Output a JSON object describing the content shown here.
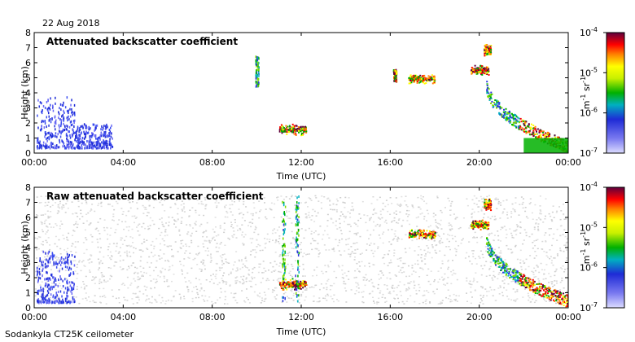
{
  "date": "22 Aug 2018",
  "footer": "Sodankyla CT25K ceilometer",
  "chart_data": [
    {
      "type": "heatmap",
      "title": "Attenuated backscatter coefficient",
      "xlabel": "Time (UTC)",
      "ylabel": "Height (km)",
      "xticks": [
        "00:00",
        "04:00",
        "08:00",
        "12:00",
        "16:00",
        "20:00",
        "00:00"
      ],
      "yticks": [
        "0",
        "1",
        "2",
        "3",
        "4",
        "5",
        "6",
        "7",
        "8"
      ],
      "xlim_hours": [
        0,
        24
      ],
      "ylim_km": [
        0,
        8
      ],
      "features": [
        {
          "kind": "noise",
          "t": [
            0.1,
            1.8
          ],
          "h": [
            0.4,
            3.8
          ],
          "level": "low"
        },
        {
          "kind": "noise",
          "t": [
            1.8,
            3.5
          ],
          "h": [
            0.4,
            2.0
          ],
          "level": "low"
        },
        {
          "kind": "streak",
          "t": 10.0,
          "h": [
            4.5,
            6.5
          ],
          "level": "mid"
        },
        {
          "kind": "cloud",
          "t": [
            11.0,
            12.2
          ],
          "h": [
            1.2,
            2.0
          ],
          "level": "high"
        },
        {
          "kind": "streak",
          "t": 16.2,
          "h": [
            4.8,
            5.6
          ],
          "level": "high"
        },
        {
          "kind": "cloud",
          "t": [
            16.8,
            18.0
          ],
          "h": [
            4.6,
            5.3
          ],
          "level": "high"
        },
        {
          "kind": "cloud",
          "t": [
            19.6,
            20.4
          ],
          "h": [
            5.2,
            5.9
          ],
          "level": "high"
        },
        {
          "kind": "cloud",
          "t": [
            20.2,
            20.5
          ],
          "h": [
            6.5,
            7.3
          ],
          "level": "high"
        },
        {
          "kind": "descending",
          "t": [
            20.3,
            24.0
          ],
          "h": [
            4.5,
            0.3
          ],
          "level": "high"
        },
        {
          "kind": "surface",
          "t": [
            22.0,
            24.0
          ],
          "h": [
            0.0,
            1.0
          ],
          "level": "mid"
        }
      ]
    },
    {
      "type": "heatmap",
      "title": "Raw attenuated backscatter coefficient",
      "xlabel": "Time (UTC)",
      "ylabel": "Height (km)",
      "xticks": [
        "00:00",
        "04:00",
        "08:00",
        "12:00",
        "16:00",
        "20:00",
        "00:00"
      ],
      "yticks": [
        "0",
        "1",
        "2",
        "3",
        "4",
        "5",
        "6",
        "7",
        "8"
      ],
      "xlim_hours": [
        0,
        24
      ],
      "ylim_km": [
        0,
        8
      ],
      "features": [
        {
          "kind": "background_noise",
          "t": [
            0.0,
            24.0
          ],
          "h": [
            0.3,
            7.5
          ],
          "level": "noise"
        },
        {
          "kind": "noise",
          "t": [
            0.1,
            1.8
          ],
          "h": [
            0.4,
            3.8
          ],
          "level": "low"
        },
        {
          "kind": "streak",
          "t": 11.2,
          "h": [
            0.4,
            7.5
          ],
          "level": "mid"
        },
        {
          "kind": "streak",
          "t": 11.8,
          "h": [
            0.4,
            7.5
          ],
          "level": "mid"
        },
        {
          "kind": "cloud",
          "t": [
            11.0,
            12.2
          ],
          "h": [
            1.2,
            2.0
          ],
          "level": "high"
        },
        {
          "kind": "cloud",
          "t": [
            16.8,
            18.0
          ],
          "h": [
            4.6,
            5.3
          ],
          "level": "high"
        },
        {
          "kind": "cloud",
          "t": [
            19.6,
            20.4
          ],
          "h": [
            5.2,
            5.9
          ],
          "level": "high"
        },
        {
          "kind": "cloud",
          "t": [
            20.2,
            20.5
          ],
          "h": [
            6.5,
            7.3
          ],
          "level": "high"
        },
        {
          "kind": "descending",
          "t": [
            20.3,
            24.0
          ],
          "h": [
            4.5,
            0.3
          ],
          "level": "high"
        }
      ]
    }
  ],
  "colorbar": {
    "label_base": "m",
    "label_exp1": "-1",
    "label_mid": "sr",
    "label_exp2": "-1",
    "ticks": [
      {
        "base": "10",
        "exp": "-4"
      },
      {
        "base": "10",
        "exp": "-5"
      },
      {
        "base": "10",
        "exp": "-6"
      },
      {
        "base": "10",
        "exp": "-7"
      }
    ],
    "colors": [
      "#d0d0ff",
      "#1e2bd6",
      "#00b000",
      "#ffff00",
      "#ff0000",
      "#5e003c"
    ]
  }
}
